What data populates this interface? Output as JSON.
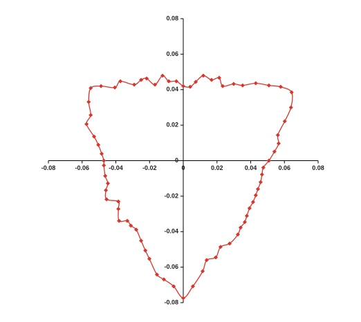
{
  "chart_data": {
    "type": "scatter",
    "color": "#d9352a",
    "smooth": true,
    "closed": true,
    "xlim": [
      -0.08,
      0.08
    ],
    "ylim": [
      -0.08,
      0.08
    ],
    "xticks": [
      -0.08,
      -0.06,
      -0.04,
      -0.02,
      0,
      0.02,
      0.04,
      0.06,
      0.08
    ],
    "yticks": [
      -0.08,
      -0.06,
      -0.04,
      -0.02,
      0,
      0.02,
      0.04,
      0.06,
      0.08
    ],
    "x": [
      -0.0549,
      -0.0488,
      -0.0406,
      -0.0373,
      -0.0291,
      -0.025,
      -0.0217,
      -0.0168,
      -0.0123,
      -0.0086,
      -0.0041,
      0,
      0.0041,
      0.0074,
      0.0119,
      0.0168,
      0.0213,
      0.0234,
      0.0299,
      0.0352,
      0.043,
      0.0508,
      0.0578,
      0.0643,
      0.0639,
      0.0602,
      0.0561,
      0.0566,
      0.0541,
      0.0508,
      0.0475,
      0.0467,
      0.0459,
      0.0443,
      0.043,
      0.0414,
      0.0393,
      0.0377,
      0.0365,
      0.034,
      0.0324,
      0.0275,
      0.0221,
      0.0193,
      0.0139,
      0.0115,
      0.0057,
      0,
      -0.0057,
      -0.0115,
      -0.0156,
      -0.0201,
      -0.0225,
      -0.025,
      -0.0279,
      -0.0311,
      -0.0332,
      -0.0381,
      -0.0385,
      -0.0385,
      -0.0455,
      -0.0459,
      -0.0447,
      -0.0463,
      -0.0471,
      -0.0471,
      -0.0484,
      -0.0504,
      -0.0529,
      -0.0574,
      -0.0549,
      -0.0561
    ],
    "y": [
      0.0409,
      0.042,
      0.0412,
      0.0447,
      0.0428,
      0.0455,
      0.0463,
      0.0428,
      0.0479,
      0.0447,
      0.0447,
      0.042,
      0.0416,
      0.0444,
      0.0479,
      0.0455,
      0.0467,
      0.042,
      0.0432,
      0.0424,
      0.0436,
      0.0424,
      0.0416,
      0.0385,
      0.03,
      0.0222,
      0.0144,
      0.0097,
      0.0051,
      0,
      -0.0039,
      -0.0078,
      -0.0121,
      -0.016,
      -0.0195,
      -0.0233,
      -0.0268,
      -0.0311,
      -0.0346,
      -0.0377,
      -0.0416,
      -0.0467,
      -0.0486,
      -0.0545,
      -0.056,
      -0.0623,
      -0.0708,
      -0.0774,
      -0.0708,
      -0.0669,
      -0.0642,
      -0.0553,
      -0.0506,
      -0.0451,
      -0.0389,
      -0.0366,
      -0.0339,
      -0.0339,
      -0.0272,
      -0.023,
      -0.0218,
      -0.0167,
      -0.0128,
      -0.0086,
      -0.0027,
      0,
      0.0039,
      0.0089,
      0.0136,
      0.0206,
      0.0257,
      0.0331
    ]
  }
}
